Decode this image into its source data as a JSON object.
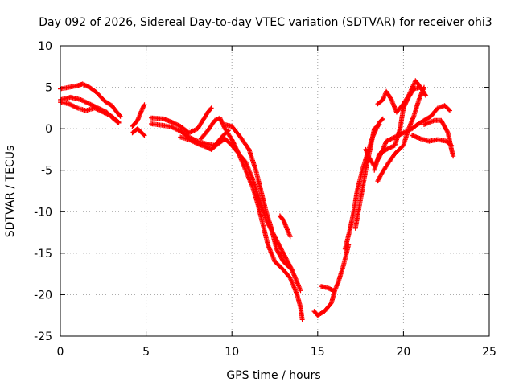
{
  "chart_data": {
    "type": "scatter",
    "title": "Day 092 of 2026, Sidereal Day-to-day VTEC variation (SDTVAR) for receiver ohi3",
    "xlabel": "GPS time / hours",
    "ylabel": "SDTVAR / TECUs",
    "xlim": [
      0,
      25
    ],
    "ylim": [
      -25,
      10
    ],
    "xticks": [
      0,
      5,
      10,
      15,
      20,
      25
    ],
    "yticks": [
      -25,
      -20,
      -15,
      -10,
      -5,
      0,
      5,
      10
    ],
    "grid": true,
    "marker": "+",
    "series": [
      {
        "name": "track-1",
        "color": "#ff0000",
        "points": [
          [
            0.0,
            4.8
          ],
          [
            0.5,
            5.0
          ],
          [
            1.0,
            5.2
          ],
          [
            1.3,
            5.4
          ],
          [
            1.7,
            5.0
          ],
          [
            2.1,
            4.4
          ],
          [
            2.6,
            3.3
          ],
          [
            3.0,
            2.8
          ],
          [
            3.3,
            2.0
          ],
          [
            3.5,
            1.5
          ]
        ]
      },
      {
        "name": "track-2",
        "color": "#ff0000",
        "points": [
          [
            0.0,
            3.5
          ],
          [
            0.6,
            3.8
          ],
          [
            1.2,
            3.5
          ],
          [
            1.7,
            3.0
          ],
          [
            2.2,
            2.5
          ],
          [
            2.7,
            2.0
          ],
          [
            3.1,
            1.2
          ],
          [
            3.4,
            0.7
          ]
        ]
      },
      {
        "name": "track-3",
        "color": "#ff0000",
        "points": [
          [
            0.0,
            3.2
          ],
          [
            0.5,
            3.0
          ],
          [
            1.0,
            2.5
          ],
          [
            1.5,
            2.2
          ],
          [
            2.0,
            2.5
          ],
          [
            2.5,
            2.0
          ],
          [
            3.0,
            1.5
          ],
          [
            3.4,
            0.8
          ]
        ]
      },
      {
        "name": "track-4",
        "color": "#ff0000",
        "points": [
          [
            4.2,
            0.3
          ],
          [
            4.5,
            1.0
          ],
          [
            4.8,
            2.5
          ],
          [
            4.9,
            2.9
          ]
        ]
      },
      {
        "name": "track-5",
        "color": "#ff0000",
        "points": [
          [
            4.2,
            -0.5
          ],
          [
            4.5,
            0.0
          ],
          [
            4.8,
            -0.6
          ],
          [
            4.9,
            -0.8
          ]
        ]
      },
      {
        "name": "track-6",
        "color": "#ff0000",
        "points": [
          [
            5.3,
            1.3
          ],
          [
            6.0,
            1.2
          ],
          [
            6.5,
            0.8
          ],
          [
            7.0,
            0.3
          ],
          [
            7.5,
            -0.5
          ],
          [
            8.0,
            0.0
          ],
          [
            8.3,
            1.0
          ],
          [
            8.6,
            2.0
          ],
          [
            8.8,
            2.5
          ]
        ]
      },
      {
        "name": "track-7",
        "color": "#ff0000",
        "points": [
          [
            5.3,
            0.6
          ],
          [
            6.0,
            0.4
          ],
          [
            6.5,
            0.2
          ],
          [
            7.0,
            -0.3
          ],
          [
            7.5,
            -1.0
          ],
          [
            8.0,
            -1.5
          ],
          [
            8.5,
            -1.8
          ],
          [
            9.0,
            -2.0
          ],
          [
            9.5,
            -0.8
          ],
          [
            9.8,
            -0.2
          ]
        ]
      },
      {
        "name": "track-8",
        "color": "#ff0000",
        "points": [
          [
            7.0,
            -1.0
          ],
          [
            7.5,
            -1.3
          ],
          [
            8.0,
            -1.8
          ],
          [
            8.5,
            -2.2
          ],
          [
            8.8,
            -2.5
          ],
          [
            9.2,
            -1.8
          ],
          [
            9.6,
            -1.2
          ],
          [
            10.0,
            -2.0
          ],
          [
            10.4,
            -3.0
          ],
          [
            10.8,
            -4.0
          ],
          [
            11.2,
            -6.0
          ],
          [
            11.6,
            -8.5
          ],
          [
            12.0,
            -11.0
          ],
          [
            12.5,
            -13.0
          ],
          [
            13.0,
            -15.0
          ],
          [
            13.5,
            -17.0
          ],
          [
            13.8,
            -18.5
          ],
          [
            14.0,
            -19.5
          ]
        ]
      },
      {
        "name": "track-9",
        "color": "#ff0000",
        "points": [
          [
            8.2,
            -1.2
          ],
          [
            8.6,
            -0.2
          ],
          [
            9.0,
            1.0
          ],
          [
            9.3,
            1.3
          ],
          [
            9.6,
            0.0
          ],
          [
            10.0,
            -1.3
          ],
          [
            10.4,
            -3.0
          ],
          [
            10.8,
            -5.0
          ],
          [
            11.2,
            -7.0
          ],
          [
            11.5,
            -9.0
          ],
          [
            11.8,
            -11.5
          ],
          [
            12.1,
            -14.0
          ],
          [
            12.5,
            -16.0
          ],
          [
            13.0,
            -17.0
          ],
          [
            13.4,
            -18.0
          ],
          [
            13.8,
            -20.0
          ],
          [
            14.0,
            -21.5
          ],
          [
            14.1,
            -23.0
          ]
        ]
      },
      {
        "name": "track-10",
        "color": "#ff0000",
        "points": [
          [
            9.6,
            0.5
          ],
          [
            10.0,
            0.3
          ],
          [
            10.5,
            -1.0
          ],
          [
            11.0,
            -2.5
          ],
          [
            11.4,
            -5.0
          ],
          [
            11.7,
            -7.5
          ],
          [
            12.0,
            -10.0
          ],
          [
            12.3,
            -12.0
          ],
          [
            12.6,
            -14.5
          ],
          [
            13.0,
            -16.0
          ],
          [
            13.4,
            -16.8
          ]
        ]
      },
      {
        "name": "track-11",
        "color": "#ff0000",
        "points": [
          [
            12.8,
            -10.5
          ],
          [
            13.0,
            -11.0
          ],
          [
            13.2,
            -12.0
          ],
          [
            13.4,
            -13.0
          ]
        ]
      },
      {
        "name": "track-12",
        "color": "#ff0000",
        "points": [
          [
            14.8,
            -22.0
          ],
          [
            15.0,
            -22.5
          ],
          [
            15.4,
            -22.0
          ],
          [
            15.8,
            -21.0
          ],
          [
            16.0,
            -19.5
          ],
          [
            16.2,
            -18.5
          ],
          [
            16.5,
            -16.5
          ],
          [
            16.8,
            -14.0
          ]
        ]
      },
      {
        "name": "track-13",
        "color": "#ff0000",
        "points": [
          [
            15.2,
            -19.0
          ],
          [
            15.6,
            -19.2
          ],
          [
            15.9,
            -19.5
          ]
        ]
      },
      {
        "name": "track-14",
        "color": "#ff0000",
        "points": [
          [
            16.6,
            -14.5
          ],
          [
            16.9,
            -12.0
          ],
          [
            17.1,
            -10.0
          ],
          [
            17.3,
            -7.5
          ],
          [
            17.6,
            -5.0
          ],
          [
            17.9,
            -3.0
          ],
          [
            18.2,
            -1.0
          ],
          [
            18.6,
            0.8
          ],
          [
            18.8,
            1.2
          ]
        ]
      },
      {
        "name": "track-15",
        "color": "#ff0000",
        "points": [
          [
            17.2,
            -12.0
          ],
          [
            17.5,
            -8.5
          ],
          [
            17.8,
            -5.0
          ],
          [
            18.1,
            -2.0
          ],
          [
            18.3,
            0.0
          ],
          [
            18.6,
            0.5
          ]
        ]
      },
      {
        "name": "track-16",
        "color": "#ff0000",
        "points": [
          [
            17.8,
            -2.5
          ],
          [
            18.0,
            -3.5
          ],
          [
            18.3,
            -4.5
          ],
          [
            18.7,
            -3.0
          ],
          [
            19.0,
            -1.5
          ],
          [
            19.5,
            -1.0
          ],
          [
            20.0,
            -0.5
          ],
          [
            20.5,
            0.0
          ],
          [
            20.8,
            0.5
          ],
          [
            21.2,
            1.0
          ],
          [
            21.6,
            1.5
          ],
          [
            22.0,
            2.5
          ],
          [
            22.4,
            2.8
          ],
          [
            22.7,
            2.2
          ]
        ]
      },
      {
        "name": "track-17",
        "color": "#ff0000",
        "points": [
          [
            18.3,
            -5.0
          ],
          [
            18.6,
            -3.0
          ],
          [
            19.0,
            -2.5
          ],
          [
            19.5,
            -2.0
          ],
          [
            19.8,
            0.0
          ],
          [
            20.0,
            2.5
          ],
          [
            20.3,
            3.8
          ],
          [
            20.6,
            4.8
          ],
          [
            21.0,
            5.0
          ],
          [
            21.3,
            4.0
          ]
        ]
      },
      {
        "name": "track-18",
        "color": "#ff0000",
        "points": [
          [
            18.5,
            -6.3
          ],
          [
            18.7,
            -5.5
          ],
          [
            19.0,
            -4.5
          ],
          [
            19.5,
            -3.0
          ],
          [
            20.0,
            -2.0
          ],
          [
            20.3,
            0.0
          ],
          [
            20.6,
            1.5
          ],
          [
            20.9,
            3.5
          ],
          [
            21.2,
            5.0
          ]
        ]
      },
      {
        "name": "track-19",
        "color": "#ff0000",
        "points": [
          [
            18.5,
            3.0
          ],
          [
            18.8,
            3.5
          ],
          [
            19.0,
            4.5
          ],
          [
            19.3,
            3.5
          ],
          [
            19.6,
            2.0
          ],
          [
            20.0,
            3.0
          ],
          [
            20.3,
            4.0
          ],
          [
            20.7,
            5.8
          ],
          [
            21.0,
            5.0
          ]
        ]
      },
      {
        "name": "track-20",
        "color": "#ff0000",
        "points": [
          [
            20.5,
            -0.8
          ],
          [
            21.0,
            -1.2
          ],
          [
            21.5,
            -1.5
          ],
          [
            22.0,
            -1.3
          ],
          [
            22.5,
            -1.5
          ],
          [
            22.8,
            -2.0
          ]
        ]
      },
      {
        "name": "track-21",
        "color": "#ff0000",
        "points": [
          [
            21.2,
            0.5
          ],
          [
            21.8,
            1.0
          ],
          [
            22.2,
            1.0
          ],
          [
            22.6,
            -0.5
          ],
          [
            22.8,
            -2.5
          ],
          [
            22.9,
            -3.3
          ]
        ]
      }
    ]
  }
}
